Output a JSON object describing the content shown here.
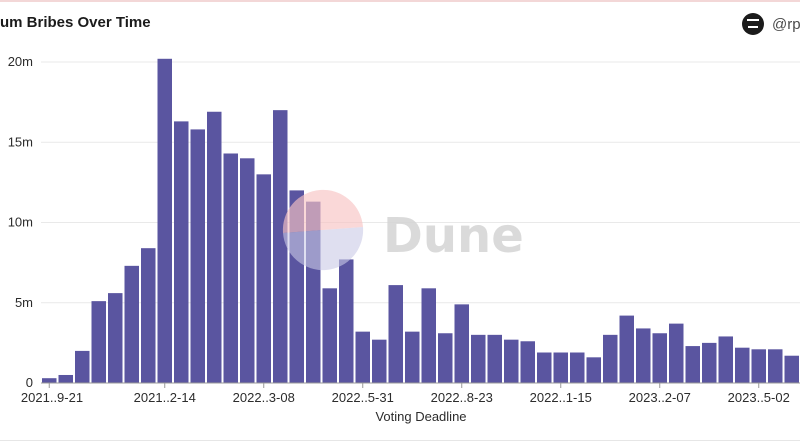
{
  "header": {
    "title": "um Bribes Over Time",
    "user_handle": "@rp",
    "avatar_icon": "robot-face-icon"
  },
  "watermark": {
    "text": "Dune",
    "text_color": "#d4d4d4",
    "logo_top_color": "#f7c3c3",
    "logo_bottom_color": "#c9c9e6"
  },
  "chart_data": {
    "type": "bar",
    "xlabel": "Voting Deadline",
    "ylabel": "",
    "ylim": [
      0,
      20000000
    ],
    "yticks": [
      {
        "value": 0,
        "label": "0"
      },
      {
        "value": 5000000,
        "label": "5m"
      },
      {
        "value": 10000000,
        "label": "10m"
      },
      {
        "value": 15000000,
        "label": "15m"
      },
      {
        "value": 20000000,
        "label": "20m"
      }
    ],
    "xticks": [
      {
        "index": 0,
        "label": "2021..9-21"
      },
      {
        "index": 7,
        "label": "2021..2-14"
      },
      {
        "index": 13,
        "label": "2022..3-08"
      },
      {
        "index": 19,
        "label": "2022..5-31"
      },
      {
        "index": 25,
        "label": "2022..8-23"
      },
      {
        "index": 31,
        "label": "2022..1-15"
      },
      {
        "index": 37,
        "label": "2023..2-07"
      },
      {
        "index": 43,
        "label": "2023..5-02"
      }
    ],
    "bar_color": "#5a55a0",
    "grid": true,
    "values": [
      300000,
      500000,
      2000000,
      5100000,
      5600000,
      7300000,
      8400000,
      20200000,
      16300000,
      15800000,
      16900000,
      14300000,
      14000000,
      13000000,
      17000000,
      12000000,
      11300000,
      5900000,
      7700000,
      3200000,
      2700000,
      6100000,
      3200000,
      5900000,
      3100000,
      4900000,
      3000000,
      3000000,
      2700000,
      2600000,
      1900000,
      1900000,
      1900000,
      1600000,
      3000000,
      4200000,
      3400000,
      3100000,
      3700000,
      2300000,
      2500000,
      2900000,
      2200000,
      2100000,
      2100000,
      1700000
    ]
  }
}
